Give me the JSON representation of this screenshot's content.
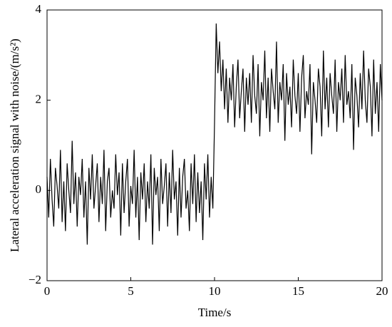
{
  "chart_data": {
    "type": "line",
    "xlabel": "Time/s",
    "ylabel": "Lateral acceleration signal with noise/(m/s²)",
    "color": "#000000",
    "xlim": [
      0,
      20
    ],
    "xticks": [
      0,
      5,
      10,
      15,
      20
    ],
    "ylim": [
      -2,
      4
    ],
    "yticks": [
      {
        "value": -2,
        "label": "−2"
      },
      0,
      2,
      4
    ],
    "x": [
      0,
      0.1,
      0.2,
      0.3,
      0.4,
      0.5,
      0.6,
      0.7,
      0.8,
      0.9,
      1,
      1.1,
      1.2,
      1.3,
      1.4,
      1.5,
      1.6,
      1.7,
      1.8,
      1.9,
      2,
      2.1,
      2.2,
      2.3,
      2.4,
      2.5,
      2.6,
      2.7,
      2.8,
      2.9,
      3,
      3.1,
      3.2,
      3.3,
      3.4,
      3.5,
      3.6,
      3.7,
      3.8,
      3.9,
      4,
      4.1,
      4.2,
      4.3,
      4.4,
      4.5,
      4.6,
      4.7,
      4.8,
      4.9,
      5,
      5.1,
      5.2,
      5.3,
      5.4,
      5.5,
      5.6,
      5.7,
      5.8,
      5.9,
      6,
      6.1,
      6.2,
      6.3,
      6.4,
      6.5,
      6.6,
      6.7,
      6.8,
      6.9,
      7,
      7.1,
      7.2,
      7.3,
      7.4,
      7.5,
      7.6,
      7.7,
      7.8,
      7.9,
      8,
      8.1,
      8.2,
      8.3,
      8.4,
      8.5,
      8.6,
      8.7,
      8.8,
      8.9,
      9,
      9.1,
      9.2,
      9.3,
      9.4,
      9.5,
      9.6,
      9.7,
      9.8,
      9.9,
      10,
      10.1,
      10.2,
      10.3,
      10.4,
      10.5,
      10.6,
      10.7,
      10.8,
      10.9,
      11,
      11.1,
      11.2,
      11.3,
      11.4,
      11.5,
      11.6,
      11.7,
      11.8,
      11.9,
      12,
      12.1,
      12.2,
      12.3,
      12.4,
      12.5,
      12.6,
      12.7,
      12.8,
      12.9,
      13,
      13.1,
      13.2,
      13.3,
      13.4,
      13.5,
      13.6,
      13.7,
      13.8,
      13.9,
      14,
      14.1,
      14.2,
      14.3,
      14.4,
      14.5,
      14.6,
      14.7,
      14.8,
      14.9,
      15,
      15.1,
      15.2,
      15.3,
      15.4,
      15.5,
      15.6,
      15.7,
      15.8,
      15.9,
      16,
      16.1,
      16.2,
      16.3,
      16.4,
      16.5,
      16.6,
      16.7,
      16.8,
      16.9,
      17,
      17.1,
      17.2,
      17.3,
      17.4,
      17.5,
      17.6,
      17.7,
      17.8,
      17.9,
      18,
      18.1,
      18.2,
      18.3,
      18.4,
      18.5,
      18.6,
      18.7,
      18.8,
      18.9,
      19,
      19.1,
      19.2,
      19.3,
      19.4,
      19.5,
      19.6,
      19.7,
      19.8,
      19.9,
      20
    ],
    "values": [
      0.3,
      -0.6,
      0.7,
      -0.2,
      -0.8,
      0.5,
      0.1,
      -0.4,
      0.9,
      -0.7,
      0.2,
      -0.9,
      0.6,
      0.0,
      -0.5,
      1.1,
      -0.3,
      0.4,
      -0.8,
      0.3,
      -0.1,
      0.7,
      -0.6,
      0.2,
      -1.2,
      0.5,
      -0.2,
      0.8,
      -0.4,
      0.1,
      0.6,
      -0.7,
      0.3,
      -0.3,
      0.9,
      -0.9,
      0.2,
      0.5,
      -0.6,
      0.0,
      -0.4,
      0.8,
      -0.1,
      0.4,
      -1.0,
      0.6,
      -0.5,
      0.2,
      0.7,
      -0.8,
      0.1,
      -0.3,
      0.9,
      -0.6,
      0.3,
      -1.1,
      0.4,
      -0.2,
      0.6,
      -0.7,
      0.2,
      -0.4,
      0.8,
      -1.2,
      0.5,
      -0.1,
      0.3,
      -0.9,
      0.7,
      -0.3,
      0.1,
      0.6,
      -0.8,
      0.4,
      -0.5,
      0.9,
      -0.2,
      0.2,
      -1.0,
      0.5,
      -0.6,
      0.3,
      0.7,
      -0.4,
      0.0,
      -0.9,
      0.6,
      -0.3,
      0.8,
      -0.7,
      0.4,
      -0.5,
      0.2,
      -1.1,
      0.6,
      -0.2,
      0.8,
      -0.6,
      0.3,
      -0.4,
      1.5,
      3.7,
      2.6,
      3.3,
      2.2,
      2.9,
      1.8,
      2.7,
      1.5,
      2.5,
      2.0,
      2.8,
      1.4,
      2.3,
      2.9,
      1.6,
      2.2,
      2.7,
      1.3,
      2.5,
      1.9,
      2.6,
      1.5,
      3.0,
      2.1,
      1.7,
      2.8,
      1.2,
      2.4,
      2.0,
      3.1,
      1.6,
      2.5,
      1.3,
      2.7,
      2.2,
      1.8,
      3.3,
      1.5,
      2.4,
      2.0,
      2.8,
      1.1,
      2.6,
      1.9,
      2.3,
      1.4,
      2.9,
      2.1,
      1.7,
      2.6,
      1.3,
      2.5,
      3.0,
      1.6,
      2.2,
      1.9,
      2.8,
      0.8,
      2.4,
      2.0,
      1.5,
      2.7,
      2.3,
      1.2,
      3.1,
      1.8,
      2.5,
      1.4,
      2.6,
      2.1,
      1.7,
      2.9,
      1.3,
      2.4,
      2.0,
      2.7,
      1.5,
      3.0,
      1.9,
      2.2,
      1.6,
      2.8,
      0.9,
      2.5,
      2.1,
      1.4,
      2.6,
      1.8,
      3.1,
      2.0,
      1.5,
      2.7,
      2.3,
      1.2,
      2.9,
      1.7,
      2.4,
      1.3,
      2.8,
      2.0
    ]
  }
}
